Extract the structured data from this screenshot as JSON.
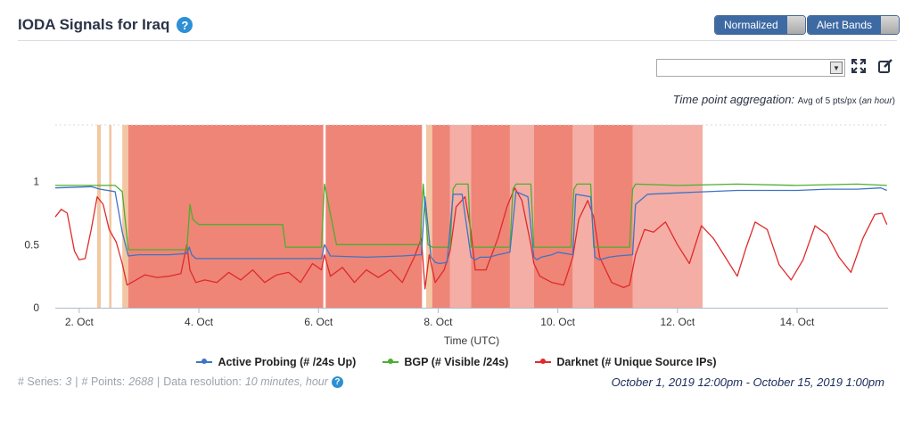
{
  "header": {
    "title": "IODA Signals for Iraq",
    "help_icon": "?",
    "toggle_normalized": "Normalized",
    "toggle_alert_bands": "Alert Bands"
  },
  "toolbar": {
    "select_value": "",
    "expand_icon": "expand-icon",
    "edit_icon": "edit-icon"
  },
  "aggregation": {
    "label": "Time point aggregation:",
    "value": "Avg of 5 pts/px (",
    "unit": "an hour",
    "close": ")"
  },
  "colors": {
    "active_probing": "#3f74c4",
    "bgp": "#4caf2e",
    "darknet": "#e02a2a",
    "alert_band_dark": "#ee8577",
    "alert_band_light": "#f4aea5",
    "alert_band_orange": "#f2c7a3"
  },
  "chart_data": {
    "type": "line",
    "xlabel": "Time (UTC)",
    "xlim": [
      1.6,
      15.52
    ],
    "ylim": [
      0,
      1.45
    ],
    "x_ticks": [
      {
        "value": 2,
        "label": "2. Oct"
      },
      {
        "value": 4,
        "label": "4. Oct"
      },
      {
        "value": 6,
        "label": "6. Oct"
      },
      {
        "value": 8,
        "label": "8. Oct"
      },
      {
        "value": 10,
        "label": "10. Oct"
      },
      {
        "value": 12,
        "label": "12. Oct"
      },
      {
        "value": 14,
        "label": "14. Oct"
      }
    ],
    "y_ticks": [
      {
        "value": 0,
        "label": "0"
      },
      {
        "value": 0.5,
        "label": "0.5"
      },
      {
        "value": 1,
        "label": "1"
      }
    ],
    "alert_bands": [
      {
        "x0": 2.3,
        "x1": 2.36,
        "level": "orange"
      },
      {
        "x0": 2.5,
        "x1": 2.54,
        "level": "orange"
      },
      {
        "x0": 2.72,
        "x1": 2.82,
        "level": "orange"
      },
      {
        "x0": 2.82,
        "x1": 6.08,
        "level": "dark"
      },
      {
        "x0": 6.12,
        "x1": 7.73,
        "level": "dark"
      },
      {
        "x0": 7.8,
        "x1": 7.9,
        "level": "orange"
      },
      {
        "x0": 7.9,
        "x1": 8.2,
        "level": "dark"
      },
      {
        "x0": 8.2,
        "x1": 8.55,
        "level": "light"
      },
      {
        "x0": 8.55,
        "x1": 9.2,
        "level": "dark"
      },
      {
        "x0": 9.2,
        "x1": 9.6,
        "level": "light"
      },
      {
        "x0": 9.6,
        "x1": 10.25,
        "level": "dark"
      },
      {
        "x0": 10.25,
        "x1": 10.6,
        "level": "light"
      },
      {
        "x0": 10.6,
        "x1": 11.25,
        "level": "dark"
      },
      {
        "x0": 11.25,
        "x1": 12.42,
        "level": "light"
      }
    ],
    "series": [
      {
        "name": "Active Probing (# /24s Up)",
        "x": [
          1.6,
          2.2,
          2.35,
          2.6,
          2.72,
          2.82,
          3.0,
          3.5,
          3.8,
          3.84,
          3.88,
          3.95,
          4.5,
          5.0,
          5.5,
          6.05,
          6.1,
          6.2,
          6.8,
          7.4,
          7.72,
          7.78,
          7.88,
          7.95,
          8.02,
          8.15,
          8.25,
          8.4,
          8.55,
          8.62,
          8.7,
          8.85,
          9.0,
          9.2,
          9.3,
          9.5,
          9.6,
          9.65,
          9.72,
          9.9,
          10.0,
          10.25,
          10.3,
          10.55,
          10.62,
          10.7,
          10.85,
          11.0,
          11.25,
          11.3,
          11.5,
          12.0,
          12.5,
          13.0,
          13.5,
          14.0,
          14.5,
          15.0,
          15.4,
          15.5
        ],
        "y": [
          0.95,
          0.96,
          0.94,
          0.92,
          0.6,
          0.41,
          0.42,
          0.42,
          0.43,
          0.48,
          0.42,
          0.39,
          0.39,
          0.39,
          0.39,
          0.39,
          0.5,
          0.41,
          0.4,
          0.41,
          0.42,
          0.88,
          0.4,
          0.36,
          0.35,
          0.36,
          0.9,
          0.9,
          0.4,
          0.38,
          0.4,
          0.4,
          0.42,
          0.44,
          0.92,
          0.88,
          0.4,
          0.38,
          0.4,
          0.42,
          0.44,
          0.42,
          0.9,
          0.88,
          0.4,
          0.38,
          0.4,
          0.41,
          0.42,
          0.82,
          0.9,
          0.91,
          0.92,
          0.93,
          0.93,
          0.93,
          0.94,
          0.94,
          0.95,
          0.93
        ]
      },
      {
        "name": "BGP (# Visible /24s)",
        "x": [
          1.6,
          2.6,
          2.72,
          2.82,
          3.8,
          3.85,
          3.9,
          4.0,
          5.0,
          5.4,
          5.45,
          6.05,
          6.1,
          6.3,
          6.6,
          7.7,
          7.75,
          7.83,
          7.9,
          8.2,
          8.25,
          8.3,
          8.5,
          8.55,
          8.6,
          9.2,
          9.25,
          9.3,
          9.55,
          9.6,
          9.65,
          10.22,
          10.27,
          10.32,
          10.55,
          10.6,
          10.65,
          11.2,
          11.25,
          11.3,
          12.0,
          13.0,
          14.0,
          15.0,
          15.5
        ],
        "y": [
          0.97,
          0.97,
          0.92,
          0.46,
          0.46,
          0.82,
          0.7,
          0.66,
          0.66,
          0.66,
          0.48,
          0.48,
          0.98,
          0.5,
          0.5,
          0.5,
          0.98,
          0.5,
          0.48,
          0.48,
          0.94,
          0.98,
          0.98,
          0.48,
          0.48,
          0.48,
          0.94,
          0.98,
          0.98,
          0.48,
          0.48,
          0.48,
          0.94,
          0.98,
          0.98,
          0.48,
          0.48,
          0.48,
          0.94,
          0.98,
          0.97,
          0.98,
          0.97,
          0.98,
          0.97
        ]
      },
      {
        "name": "Darknet (# Unique Source IPs)",
        "x": [
          1.6,
          1.7,
          1.8,
          1.92,
          2.0,
          2.1,
          2.2,
          2.3,
          2.4,
          2.5,
          2.62,
          2.72,
          2.8,
          2.95,
          3.1,
          3.3,
          3.5,
          3.7,
          3.8,
          3.85,
          3.95,
          4.1,
          4.3,
          4.5,
          4.7,
          4.9,
          5.1,
          5.3,
          5.5,
          5.7,
          5.9,
          6.05,
          6.1,
          6.2,
          6.4,
          6.6,
          6.8,
          7.0,
          7.2,
          7.4,
          7.6,
          7.72,
          7.78,
          7.85,
          7.95,
          8.1,
          8.2,
          8.3,
          8.45,
          8.55,
          8.62,
          8.8,
          9.0,
          9.15,
          9.28,
          9.4,
          9.55,
          9.6,
          9.7,
          9.9,
          10.1,
          10.25,
          10.35,
          10.5,
          10.6,
          10.7,
          10.9,
          11.1,
          11.2,
          11.3,
          11.45,
          11.6,
          11.8,
          12.0,
          12.2,
          12.4,
          12.6,
          12.8,
          13.0,
          13.15,
          13.3,
          13.5,
          13.7,
          13.9,
          14.1,
          14.3,
          14.5,
          14.7,
          14.9,
          15.1,
          15.3,
          15.42,
          15.5
        ],
        "y": [
          0.72,
          0.78,
          0.75,
          0.45,
          0.38,
          0.39,
          0.62,
          0.88,
          0.82,
          0.62,
          0.52,
          0.35,
          0.18,
          0.22,
          0.26,
          0.24,
          0.25,
          0.27,
          0.5,
          0.3,
          0.2,
          0.22,
          0.2,
          0.28,
          0.22,
          0.3,
          0.2,
          0.26,
          0.28,
          0.2,
          0.35,
          0.3,
          0.42,
          0.25,
          0.32,
          0.2,
          0.3,
          0.24,
          0.3,
          0.2,
          0.4,
          0.55,
          0.15,
          0.42,
          0.2,
          0.3,
          0.45,
          0.8,
          0.88,
          0.6,
          0.3,
          0.3,
          0.55,
          0.8,
          0.95,
          0.85,
          0.5,
          0.35,
          0.25,
          0.2,
          0.18,
          0.4,
          0.7,
          0.85,
          0.72,
          0.4,
          0.2,
          0.16,
          0.18,
          0.42,
          0.62,
          0.6,
          0.68,
          0.5,
          0.35,
          0.65,
          0.55,
          0.4,
          0.25,
          0.48,
          0.68,
          0.62,
          0.34,
          0.22,
          0.38,
          0.65,
          0.58,
          0.4,
          0.28,
          0.55,
          0.74,
          0.75,
          0.66
        ]
      }
    ]
  },
  "footer": {
    "series_label": "# Series:",
    "series_value": "3",
    "points_label": "# Points:",
    "points_value": "2688",
    "resolution_label": "Data resolution:",
    "resolution_value": "10 minutes, hour",
    "date_range": "October 1, 2019 12:00pm - October 15, 2019 1:00pm"
  }
}
